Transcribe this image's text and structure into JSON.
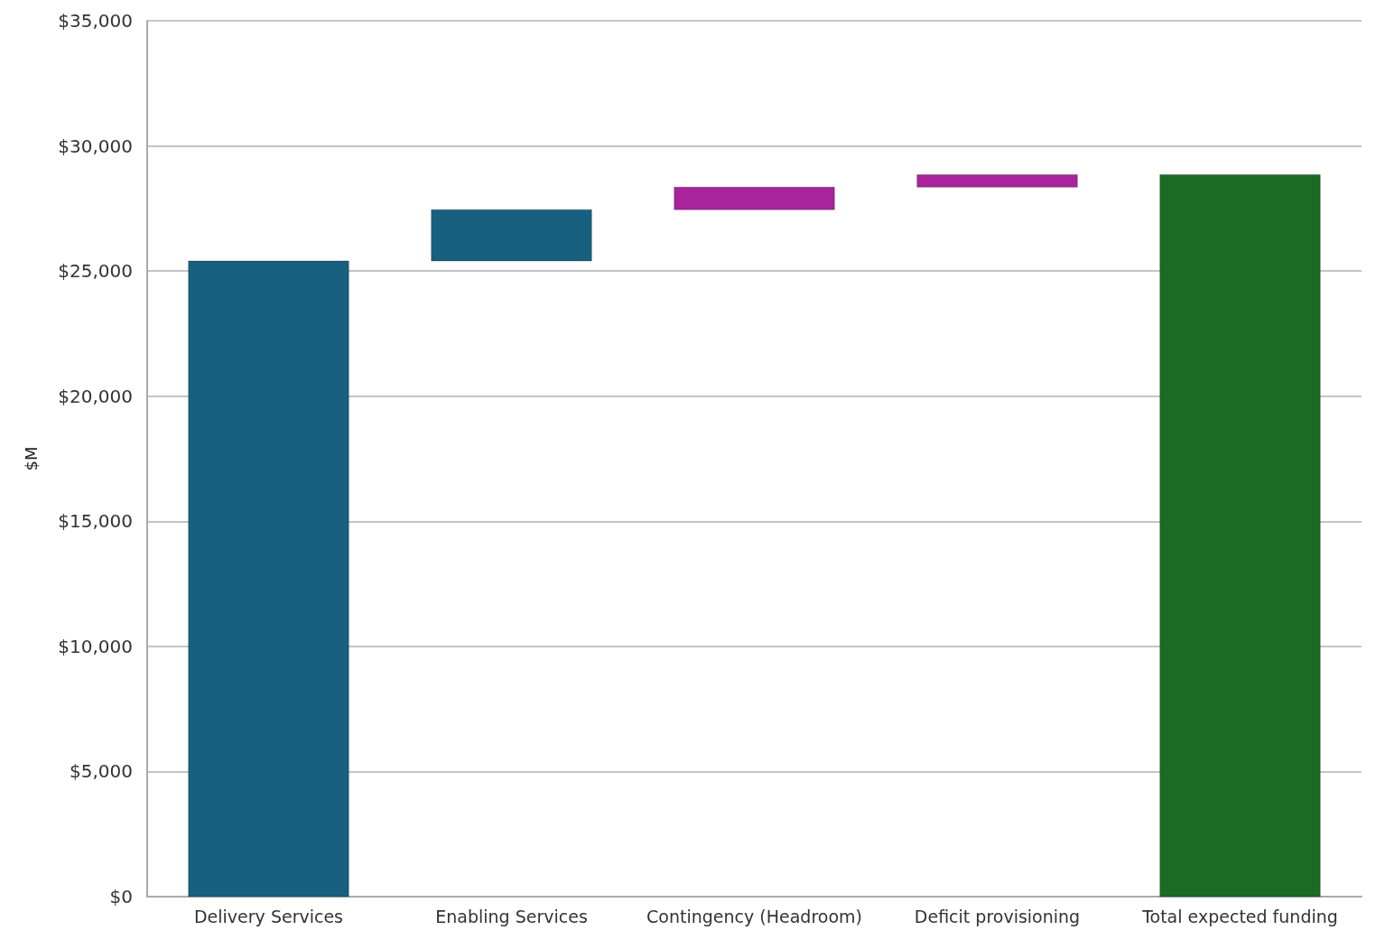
{
  "chart_data": {
    "type": "bar",
    "ylabel": "$M",
    "categories": [
      "Delivery Services",
      "Enabling Services",
      "Contingency (Headroom)",
      "Deficit provisioning",
      "Total expected funding"
    ],
    "values": [
      25400,
      2050,
      900,
      500,
      28850
    ],
    "base": [
      0,
      25400,
      27450,
      28350,
      0
    ],
    "colors": [
      "#17607f",
      "#17607f",
      "#a8239c",
      "#a8239c",
      "#1b6b23"
    ],
    "ylim": [
      0,
      35000
    ],
    "yticks": [
      {
        "value": 0,
        "label": "$0"
      },
      {
        "value": 5000,
        "label": "$5,000"
      },
      {
        "value": 10000,
        "label": "$10,000"
      },
      {
        "value": 15000,
        "label": "$15,000"
      },
      {
        "value": 20000,
        "label": "$20,000"
      },
      {
        "value": 25000,
        "label": "$25,000"
      },
      {
        "value": 30000,
        "label": "$30,000"
      },
      {
        "value": 35000,
        "label": "$35,000"
      }
    ],
    "grid": "y"
  }
}
